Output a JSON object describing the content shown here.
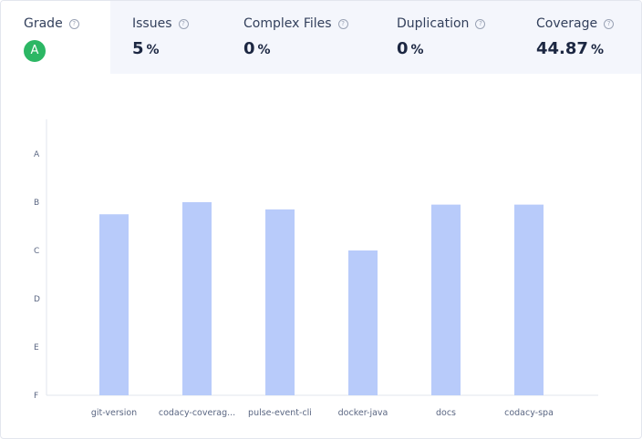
{
  "metrics": {
    "grade": {
      "label": "Grade",
      "value": "A",
      "color": "#2cb764"
    },
    "issues": {
      "label": "Issues",
      "value": "5",
      "unit": "%"
    },
    "complex_files": {
      "label": "Complex Files",
      "value": "0",
      "unit": "%"
    },
    "duplication": {
      "label": "Duplication",
      "value": "0",
      "unit": "%"
    },
    "coverage": {
      "label": "Coverage",
      "value": "44.87",
      "unit": "%"
    },
    "help_icon": "question-circle-icon"
  },
  "chart_data": {
    "type": "bar",
    "categories": [
      "git-version",
      "codacy-coverag...",
      "pulse-event-cli",
      "docker-java",
      "docs",
      "codacy-spa"
    ],
    "y_ticks": [
      "A",
      "B",
      "C",
      "D",
      "E",
      "F"
    ],
    "y_scale": "grade A (top) to F (bottom)",
    "values": [
      3.75,
      4.0,
      3.85,
      3.0,
      3.95,
      3.95
    ],
    "ylim": [
      0,
      5
    ],
    "bar_color": "#b8cbfa",
    "grid": false
  }
}
